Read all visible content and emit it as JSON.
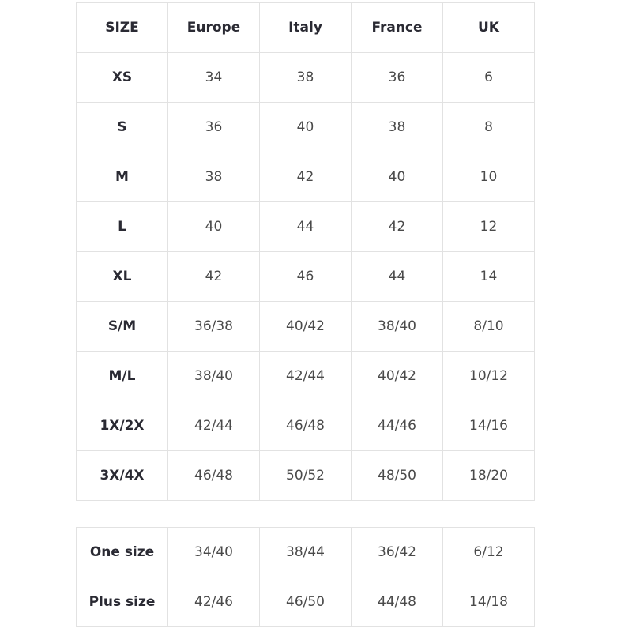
{
  "main_table": {
    "headers": [
      "SIZE",
      "Europe",
      "Italy",
      "France",
      "UK"
    ],
    "rows": [
      [
        "XS",
        "34",
        "38",
        "36",
        "6"
      ],
      [
        "S",
        "36",
        "40",
        "38",
        "8"
      ],
      [
        "M",
        "38",
        "42",
        "40",
        "10"
      ],
      [
        "L",
        "40",
        "44",
        "42",
        "12"
      ],
      [
        "XL",
        "42",
        "46",
        "44",
        "14"
      ],
      [
        "S/M",
        "36/38",
        "40/42",
        "38/40",
        "8/10"
      ],
      [
        "M/L",
        "38/40",
        "42/44",
        "40/42",
        "10/12"
      ],
      [
        "1X/2X",
        "42/44",
        "46/48",
        "44/46",
        "14/16"
      ],
      [
        "3X/4X",
        "46/48",
        "50/52",
        "48/50",
        "18/20"
      ]
    ]
  },
  "special_table": {
    "rows": [
      [
        "One size",
        "34/40",
        "38/44",
        "36/42",
        "6/12"
      ],
      [
        "Plus size",
        "42/46",
        "46/50",
        "44/48",
        "14/18"
      ]
    ]
  }
}
